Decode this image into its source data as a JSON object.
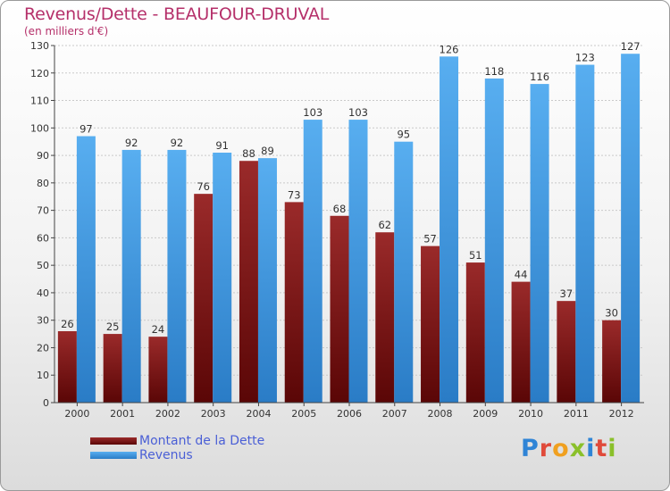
{
  "header": {
    "title": "Revenus/Dette - BEAUFOUR-DRUVAL",
    "subtitle": "(en milliers d'€)"
  },
  "chart_data": {
    "type": "bar",
    "categories": [
      "2000",
      "2001",
      "2002",
      "2003",
      "2004",
      "2005",
      "2006",
      "2007",
      "2008",
      "2009",
      "2010",
      "2011",
      "2012"
    ],
    "series": [
      {
        "name": "Montant de la Dette",
        "color": "#7a1010",
        "values": [
          26,
          25,
          24,
          76,
          88,
          73,
          68,
          62,
          57,
          51,
          44,
          37,
          30
        ]
      },
      {
        "name": "Revenus",
        "color": "#3d93dd",
        "values": [
          97,
          92,
          92,
          91,
          89,
          103,
          103,
          95,
          126,
          118,
          116,
          123,
          127
        ]
      }
    ],
    "y_ticks": [
      0,
      10,
      20,
      30,
      40,
      50,
      60,
      70,
      80,
      90,
      100,
      110,
      120,
      130
    ],
    "ylim": [
      0,
      130
    ],
    "grid": true,
    "legend": "bottom-left"
  },
  "logo": {
    "letters": [
      "P",
      "r",
      "o",
      "x",
      "i",
      "t",
      "i"
    ],
    "colors": [
      "#2f84d6",
      "#e04a3a",
      "#f0a020",
      "#8ac02a",
      "#2f84d6",
      "#e04a3a",
      "#8ac02a"
    ]
  }
}
